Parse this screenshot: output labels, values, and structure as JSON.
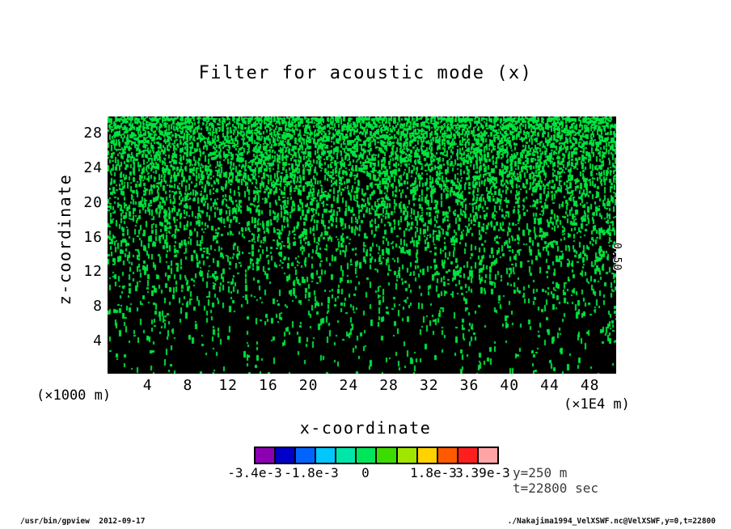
{
  "chart_data": {
    "type": "heatmap",
    "title": "Filter for acoustic mode (x)",
    "xlabel": "x-coordinate",
    "ylabel": "z-coordinate",
    "x_unit_label": "(×1E4 m)",
    "y_unit_label": "(×1000 m)",
    "x_ticks": [
      4,
      8,
      12,
      16,
      20,
      24,
      28,
      32,
      36,
      40,
      44,
      48
    ],
    "y_ticks": [
      28,
      24,
      20,
      16,
      12,
      8,
      4
    ],
    "xlim": [
      0,
      50.6
    ],
    "ylim": [
      0.25,
      30
    ],
    "grid": false,
    "legend_position": "bottom",
    "field": {
      "description": "binary filter mask field: cells above threshold drawn bright green, others black; green coverage decreases with depth",
      "background_color": "#000000",
      "foreground_color": "#00E43E",
      "green_fraction_top": 0.93,
      "green_fraction_bottom": 0.06
    },
    "right_edge_label": "0.50",
    "colorbar": {
      "tick_labels": [
        "-3.4e-3",
        "-1.8e-3",
        "0",
        "1.8e-3",
        "3.39e-3"
      ],
      "min": -0.0034,
      "max": 0.00339,
      "colors": [
        "#8C00B4",
        "#0000C8",
        "#0064FF",
        "#00C8FF",
        "#00E6AA",
        "#00E65A",
        "#3CDC00",
        "#A0E600",
        "#FFD200",
        "#FF5A00",
        "#FF1E1E",
        "#FFA5A5"
      ]
    }
  },
  "annotations": {
    "y_slice": "y=250 m",
    "t_slice": "t=22800 sec"
  },
  "footer": {
    "left": "/usr/bin/gpview  2012-09-17",
    "right": "./Nakajima1994_VelXSWF.nc@VelXSWF,y=0,t=22800"
  }
}
